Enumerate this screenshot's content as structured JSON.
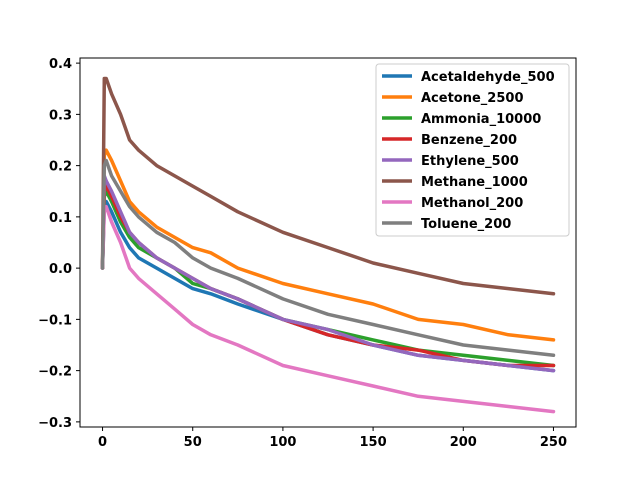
{
  "chart_data": {
    "type": "line",
    "title": "",
    "xlabel": "",
    "ylabel": "",
    "xlim": [
      -12.5,
      262.5
    ],
    "ylim": [
      -0.31,
      0.41
    ],
    "xticks": [
      0,
      50,
      100,
      150,
      200,
      250
    ],
    "yticks": [
      -0.3,
      -0.2,
      -0.1,
      0.0,
      0.1,
      0.2,
      0.3,
      0.4
    ],
    "ytick_labels": [
      "−0.3",
      "−0.2",
      "−0.1",
      "0.0",
      "0.1",
      "0.2",
      "0.3",
      "0.4"
    ],
    "legend_position": "top-right",
    "grid": false,
    "series": [
      {
        "name": "Acetaldehyde_500",
        "color": "#1f77b4",
        "x": [
          0,
          1,
          2,
          5,
          10,
          15,
          20,
          30,
          40,
          50,
          60,
          75,
          100,
          125,
          150,
          175,
          200,
          225,
          250
        ],
        "y": [
          0.0,
          0.12,
          0.13,
          0.11,
          0.07,
          0.04,
          0.02,
          0.0,
          -0.02,
          -0.04,
          -0.05,
          -0.07,
          -0.1,
          -0.13,
          -0.15,
          -0.17,
          -0.18,
          -0.19,
          -0.2
        ]
      },
      {
        "name": "Acetone_2500",
        "color": "#ff7f0e",
        "x": [
          0,
          1,
          2,
          5,
          10,
          15,
          20,
          30,
          40,
          50,
          60,
          75,
          100,
          125,
          150,
          175,
          200,
          225,
          250
        ],
        "y": [
          0.0,
          0.22,
          0.23,
          0.21,
          0.17,
          0.13,
          0.11,
          0.08,
          0.06,
          0.04,
          0.03,
          0.0,
          -0.03,
          -0.05,
          -0.07,
          -0.1,
          -0.11,
          -0.13,
          -0.14
        ]
      },
      {
        "name": "Ammonia_10000",
        "color": "#2ca02c",
        "x": [
          0,
          1,
          2,
          5,
          10,
          15,
          20,
          30,
          40,
          50,
          60,
          75,
          100,
          125,
          150,
          175,
          200,
          225,
          250
        ],
        "y": [
          0.0,
          0.14,
          0.15,
          0.13,
          0.09,
          0.06,
          0.04,
          0.02,
          0.0,
          -0.03,
          -0.04,
          -0.06,
          -0.1,
          -0.12,
          -0.14,
          -0.16,
          -0.17,
          -0.18,
          -0.19
        ]
      },
      {
        "name": "Benzene_200",
        "color": "#d62728",
        "x": [
          0,
          1,
          2,
          5,
          10,
          15,
          20,
          30,
          40,
          50,
          60,
          75,
          100,
          125,
          150,
          175,
          200,
          225,
          250
        ],
        "y": [
          0.0,
          0.15,
          0.16,
          0.14,
          0.1,
          0.07,
          0.05,
          0.02,
          0.0,
          -0.02,
          -0.04,
          -0.06,
          -0.1,
          -0.13,
          -0.15,
          -0.16,
          -0.18,
          -0.19,
          -0.19
        ]
      },
      {
        "name": "Ethylene_500",
        "color": "#9467bd",
        "x": [
          0,
          1,
          2,
          5,
          10,
          15,
          20,
          30,
          40,
          50,
          60,
          75,
          100,
          125,
          150,
          175,
          200,
          225,
          250
        ],
        "y": [
          0.0,
          0.18,
          0.17,
          0.15,
          0.11,
          0.07,
          0.05,
          0.02,
          0.0,
          -0.02,
          -0.04,
          -0.06,
          -0.1,
          -0.12,
          -0.15,
          -0.17,
          -0.18,
          -0.19,
          -0.2
        ]
      },
      {
        "name": "Methane_1000",
        "color": "#8c564b",
        "x": [
          0,
          1,
          2,
          5,
          10,
          15,
          20,
          30,
          40,
          50,
          60,
          75,
          100,
          125,
          150,
          175,
          200,
          225,
          250
        ],
        "y": [
          0.0,
          0.37,
          0.37,
          0.34,
          0.3,
          0.25,
          0.23,
          0.2,
          0.18,
          0.16,
          0.14,
          0.11,
          0.07,
          0.04,
          0.01,
          -0.01,
          -0.03,
          -0.04,
          -0.05
        ]
      },
      {
        "name": "Methanol_200",
        "color": "#e377c2",
        "x": [
          0,
          1,
          2,
          5,
          10,
          15,
          20,
          30,
          40,
          50,
          60,
          75,
          100,
          125,
          150,
          175,
          200,
          225,
          250
        ],
        "y": [
          0.0,
          0.11,
          0.12,
          0.09,
          0.05,
          0.0,
          -0.02,
          -0.05,
          -0.08,
          -0.11,
          -0.13,
          -0.15,
          -0.19,
          -0.21,
          -0.23,
          -0.25,
          -0.26,
          -0.27,
          -0.28
        ]
      },
      {
        "name": "Toluene_200",
        "color": "#7f7f7f",
        "x": [
          0,
          1,
          2,
          5,
          10,
          15,
          20,
          30,
          40,
          50,
          60,
          75,
          100,
          125,
          150,
          175,
          200,
          225,
          250
        ],
        "y": [
          0.0,
          0.2,
          0.21,
          0.18,
          0.15,
          0.12,
          0.1,
          0.07,
          0.05,
          0.02,
          0.0,
          -0.02,
          -0.06,
          -0.09,
          -0.11,
          -0.13,
          -0.15,
          -0.16,
          -0.17
        ]
      }
    ]
  }
}
